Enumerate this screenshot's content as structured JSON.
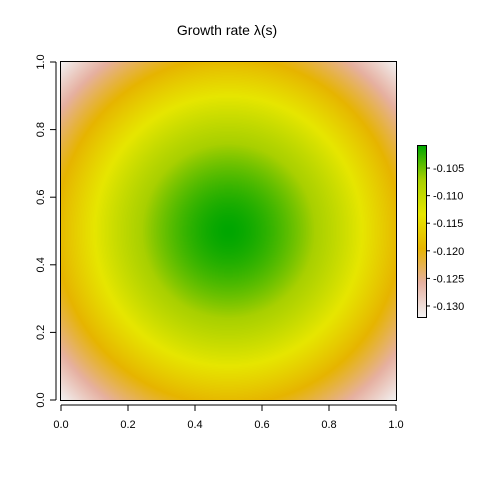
{
  "chart_data": {
    "type": "heatmap",
    "title": "Growth rate λ(s)",
    "xlabel": "",
    "ylabel": "",
    "xlim": [
      0.0,
      1.0
    ],
    "ylim": [
      0.0,
      1.0
    ],
    "x_ticks": [
      "0.0",
      "0.2",
      "0.4",
      "0.6",
      "0.8",
      "1.0"
    ],
    "y_ticks": [
      "0.0",
      "0.2",
      "0.4",
      "0.6",
      "0.8",
      "1.0"
    ],
    "colorbar": {
      "range": [
        -0.132,
        -0.101
      ],
      "ticks": [
        "-0.105",
        "-0.110",
        "-0.115",
        "-0.120",
        "-0.125",
        "-0.130"
      ],
      "tick_values": [
        -0.105,
        -0.11,
        -0.115,
        -0.12,
        -0.125,
        -0.13
      ],
      "colors": [
        "#f2f2f2",
        "#e6b0a0",
        "#e6b400",
        "#e6e600",
        "#a8d000",
        "#00a600"
      ],
      "placement": "right"
    },
    "field": {
      "center": [
        0.5,
        0.5
      ],
      "center_value": -0.101,
      "corner_value": -0.132,
      "shape": "radial"
    },
    "grid": false,
    "legend": "colorbar-right"
  }
}
